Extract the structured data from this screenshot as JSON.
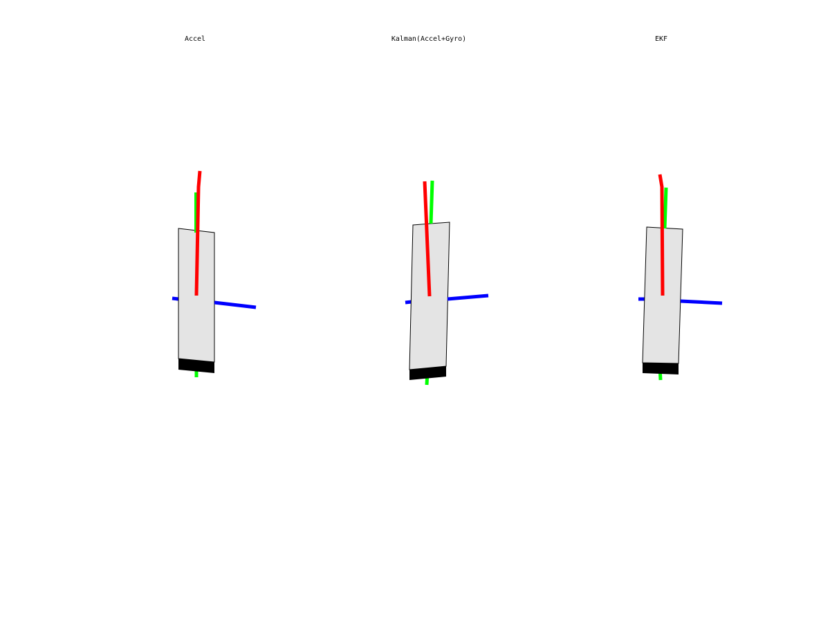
{
  "views": [
    {
      "id": "accel",
      "title": "Accel"
    },
    {
      "id": "kalman",
      "title": "Kalman(Accel+Gyro)"
    },
    {
      "id": "ekf",
      "title": "EKF"
    }
  ],
  "colors": {
    "background": "#ffffff",
    "board_face": "#e4e4e4",
    "board_edge": "#000000",
    "axis_x": "#ff0000",
    "axis_y": "#00ff00",
    "axis_z": "#0000ff"
  }
}
